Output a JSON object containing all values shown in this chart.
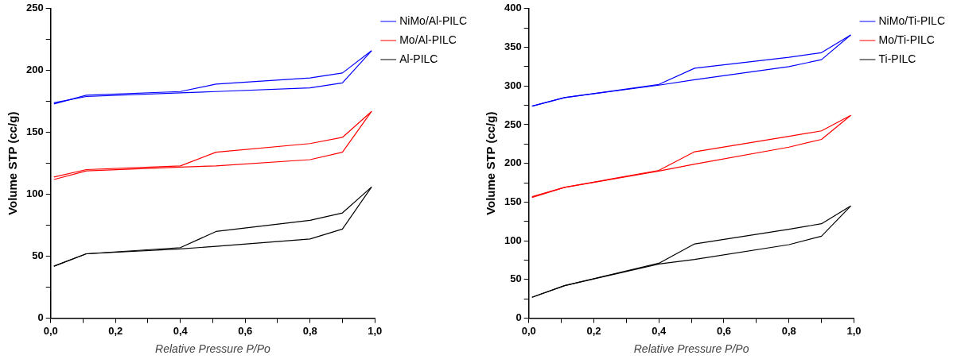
{
  "chart_data": [
    {
      "type": "line",
      "xlabel": "Relative Pressure P/Po",
      "ylabel": "Volume STP (cc/g)",
      "legend": "top right",
      "grid": false,
      "marker": "none",
      "line_style": "solid",
      "xlim": [
        0,
        1
      ],
      "xticks": [
        {
          "value": 0,
          "label": "0,0"
        },
        {
          "value": 0.1,
          "label": null
        },
        {
          "value": 0.2,
          "label": "0,2"
        },
        {
          "value": 0.3,
          "label": null
        },
        {
          "value": 0.4,
          "label": "0,4"
        },
        {
          "value": 0.5,
          "label": null
        },
        {
          "value": 0.6,
          "label": "0,6"
        },
        {
          "value": 0.7,
          "label": null
        },
        {
          "value": 0.8,
          "label": "0,8"
        },
        {
          "value": 0.9,
          "label": null
        },
        {
          "value": 1,
          "label": "1,0"
        }
      ],
      "ylim": [
        0,
        250
      ],
      "yticks": [
        0,
        {
          "value": 25,
          "label": null
        },
        50,
        {
          "value": 75,
          "label": null
        },
        100,
        {
          "value": 125,
          "label": null
        },
        150,
        {
          "value": 175,
          "label": null
        },
        200,
        {
          "value": 225,
          "label": null
        },
        250
      ],
      "x": [
        0.01,
        0.11,
        0.4,
        0.51,
        0.8,
        0.9,
        0.99
      ],
      "series": [
        {
          "name": "NiMo/Al-PILC",
          "color": "#0000ff",
          "values": [
            174,
            179,
            182,
            183,
            186,
            190,
            216
          ]
        },
        {
          "color": "#0000ff",
          "values": [
            173,
            180,
            183,
            189,
            194,
            198,
            216
          ]
        },
        {
          "name": "Mo/Al-PILC",
          "color": "#ff0000",
          "values": [
            112,
            119,
            122,
            123,
            128,
            134,
            167
          ]
        },
        {
          "color": "#ff0000",
          "values": [
            114,
            120,
            123,
            134,
            141,
            146,
            167
          ]
        },
        {
          "name": "Al-PILC",
          "color": "#000000",
          "values": [
            42,
            52,
            56,
            58,
            64,
            72,
            106
          ]
        },
        {
          "color": "#000000",
          "values": [
            42,
            52,
            57,
            70,
            79,
            85,
            106
          ]
        }
      ]
    },
    {
      "type": "line",
      "xlabel": "Relative Pressure P/Po",
      "ylabel": "Volume STP (cc/g)",
      "legend": "top right",
      "grid": false,
      "marker": "none",
      "line_style": "solid",
      "xlim": [
        0,
        1
      ],
      "xticks": [
        {
          "value": 0,
          "label": "0,0"
        },
        {
          "value": 0.1,
          "label": null
        },
        {
          "value": 0.2,
          "label": "0,2"
        },
        {
          "value": 0.3,
          "label": null
        },
        {
          "value": 0.4,
          "label": "0,4"
        },
        {
          "value": 0.5,
          "label": null
        },
        {
          "value": 0.6,
          "label": "0,6"
        },
        {
          "value": 0.7,
          "label": null
        },
        {
          "value": 0.8,
          "label": "0,8"
        },
        {
          "value": 0.9,
          "label": null
        },
        {
          "value": 1,
          "label": "1,0"
        }
      ],
      "ylim": [
        0,
        400
      ],
      "yticks": [
        0,
        {
          "value": 25,
          "label": null
        },
        50,
        {
          "value": 75,
          "label": null
        },
        100,
        {
          "value": 125,
          "label": null
        },
        150,
        {
          "value": 175,
          "label": null
        },
        200,
        {
          "value": 225,
          "label": null
        },
        250,
        {
          "value": 275,
          "label": null
        },
        300,
        {
          "value": 325,
          "label": null
        },
        350,
        {
          "value": 375,
          "label": null
        },
        400
      ],
      "x": [
        0.01,
        0.11,
        0.4,
        0.51,
        0.8,
        0.9,
        0.99
      ],
      "series": [
        {
          "name": "NiMo/Ti-PILC",
          "color": "#0000ff",
          "values": [
            274,
            285,
            301,
            308,
            325,
            334,
            366
          ]
        },
        {
          "color": "#0000ff",
          "values": [
            274,
            285,
            302,
            323,
            337,
            343,
            366
          ]
        },
        {
          "name": "Mo/Ti-PILC",
          "color": "#ff0000",
          "values": [
            156,
            169,
            190,
            199,
            221,
            231,
            262
          ]
        },
        {
          "color": "#ff0000",
          "values": [
            157,
            169,
            191,
            215,
            235,
            242,
            262
          ]
        },
        {
          "name": "Ti-PILC",
          "color": "#000000",
          "values": [
            27,
            42,
            70,
            76,
            95,
            106,
            145
          ]
        },
        {
          "color": "#000000",
          "values": [
            27,
            42,
            71,
            96,
            115,
            122,
            145
          ]
        }
      ]
    }
  ]
}
